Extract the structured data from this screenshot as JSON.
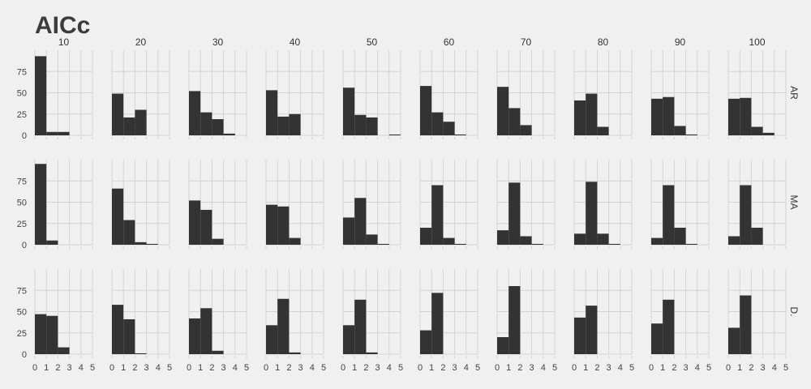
{
  "chart_data": {
    "type": "bar",
    "title": "AICc",
    "columns": [
      "10",
      "20",
      "30",
      "40",
      "50",
      "60",
      "70",
      "80",
      "90",
      "100"
    ],
    "rows": [
      "AR",
      "MA",
      "D."
    ],
    "xlim": [
      0,
      5
    ],
    "x_ticks": [
      0,
      1,
      2,
      3,
      4,
      5
    ],
    "ylim": [
      0,
      100
    ],
    "y_ticks": [
      0,
      25,
      50,
      75
    ],
    "bin_width": 1,
    "bin_starts": [
      0,
      1,
      2,
      3,
      4
    ],
    "grid": true,
    "legend": "none",
    "panels": {
      "AR": [
        [
          93,
          4,
          4,
          0,
          0
        ],
        [
          49,
          21,
          30,
          0,
          0
        ],
        [
          52,
          27,
          19,
          2,
          0
        ],
        [
          53,
          22,
          25,
          0,
          0
        ],
        [
          56,
          24,
          21,
          0,
          1
        ],
        [
          58,
          27,
          16,
          1,
          0
        ],
        [
          57,
          32,
          12,
          0,
          0
        ],
        [
          41,
          49,
          10,
          0,
          0
        ],
        [
          43,
          45,
          11,
          1,
          0
        ],
        [
          43,
          44,
          10,
          3,
          0
        ]
      ],
      "MA": [
        [
          95,
          5,
          0,
          0,
          0
        ],
        [
          66,
          29,
          3,
          1,
          0
        ],
        [
          52,
          41,
          7,
          0,
          0
        ],
        [
          47,
          45,
          8,
          0,
          0
        ],
        [
          32,
          55,
          12,
          1,
          0
        ],
        [
          20,
          70,
          8,
          1,
          0
        ],
        [
          17,
          73,
          10,
          1,
          0
        ],
        [
          13,
          74,
          13,
          1,
          0
        ],
        [
          8,
          70,
          20,
          1,
          0
        ],
        [
          10,
          70,
          20,
          0,
          0
        ]
      ],
      "D.": [
        [
          47,
          45,
          8,
          0,
          0
        ],
        [
          58,
          41,
          1,
          0,
          0
        ],
        [
          42,
          54,
          4,
          0,
          0
        ],
        [
          34,
          65,
          2,
          0,
          0
        ],
        [
          34,
          64,
          2,
          0,
          0
        ],
        [
          28,
          72,
          0,
          0,
          0
        ],
        [
          20,
          80,
          0,
          0,
          0
        ],
        [
          43,
          57,
          0,
          0,
          0
        ],
        [
          36,
          64,
          0,
          0,
          0
        ],
        [
          31,
          69,
          0,
          0,
          0
        ]
      ]
    }
  }
}
